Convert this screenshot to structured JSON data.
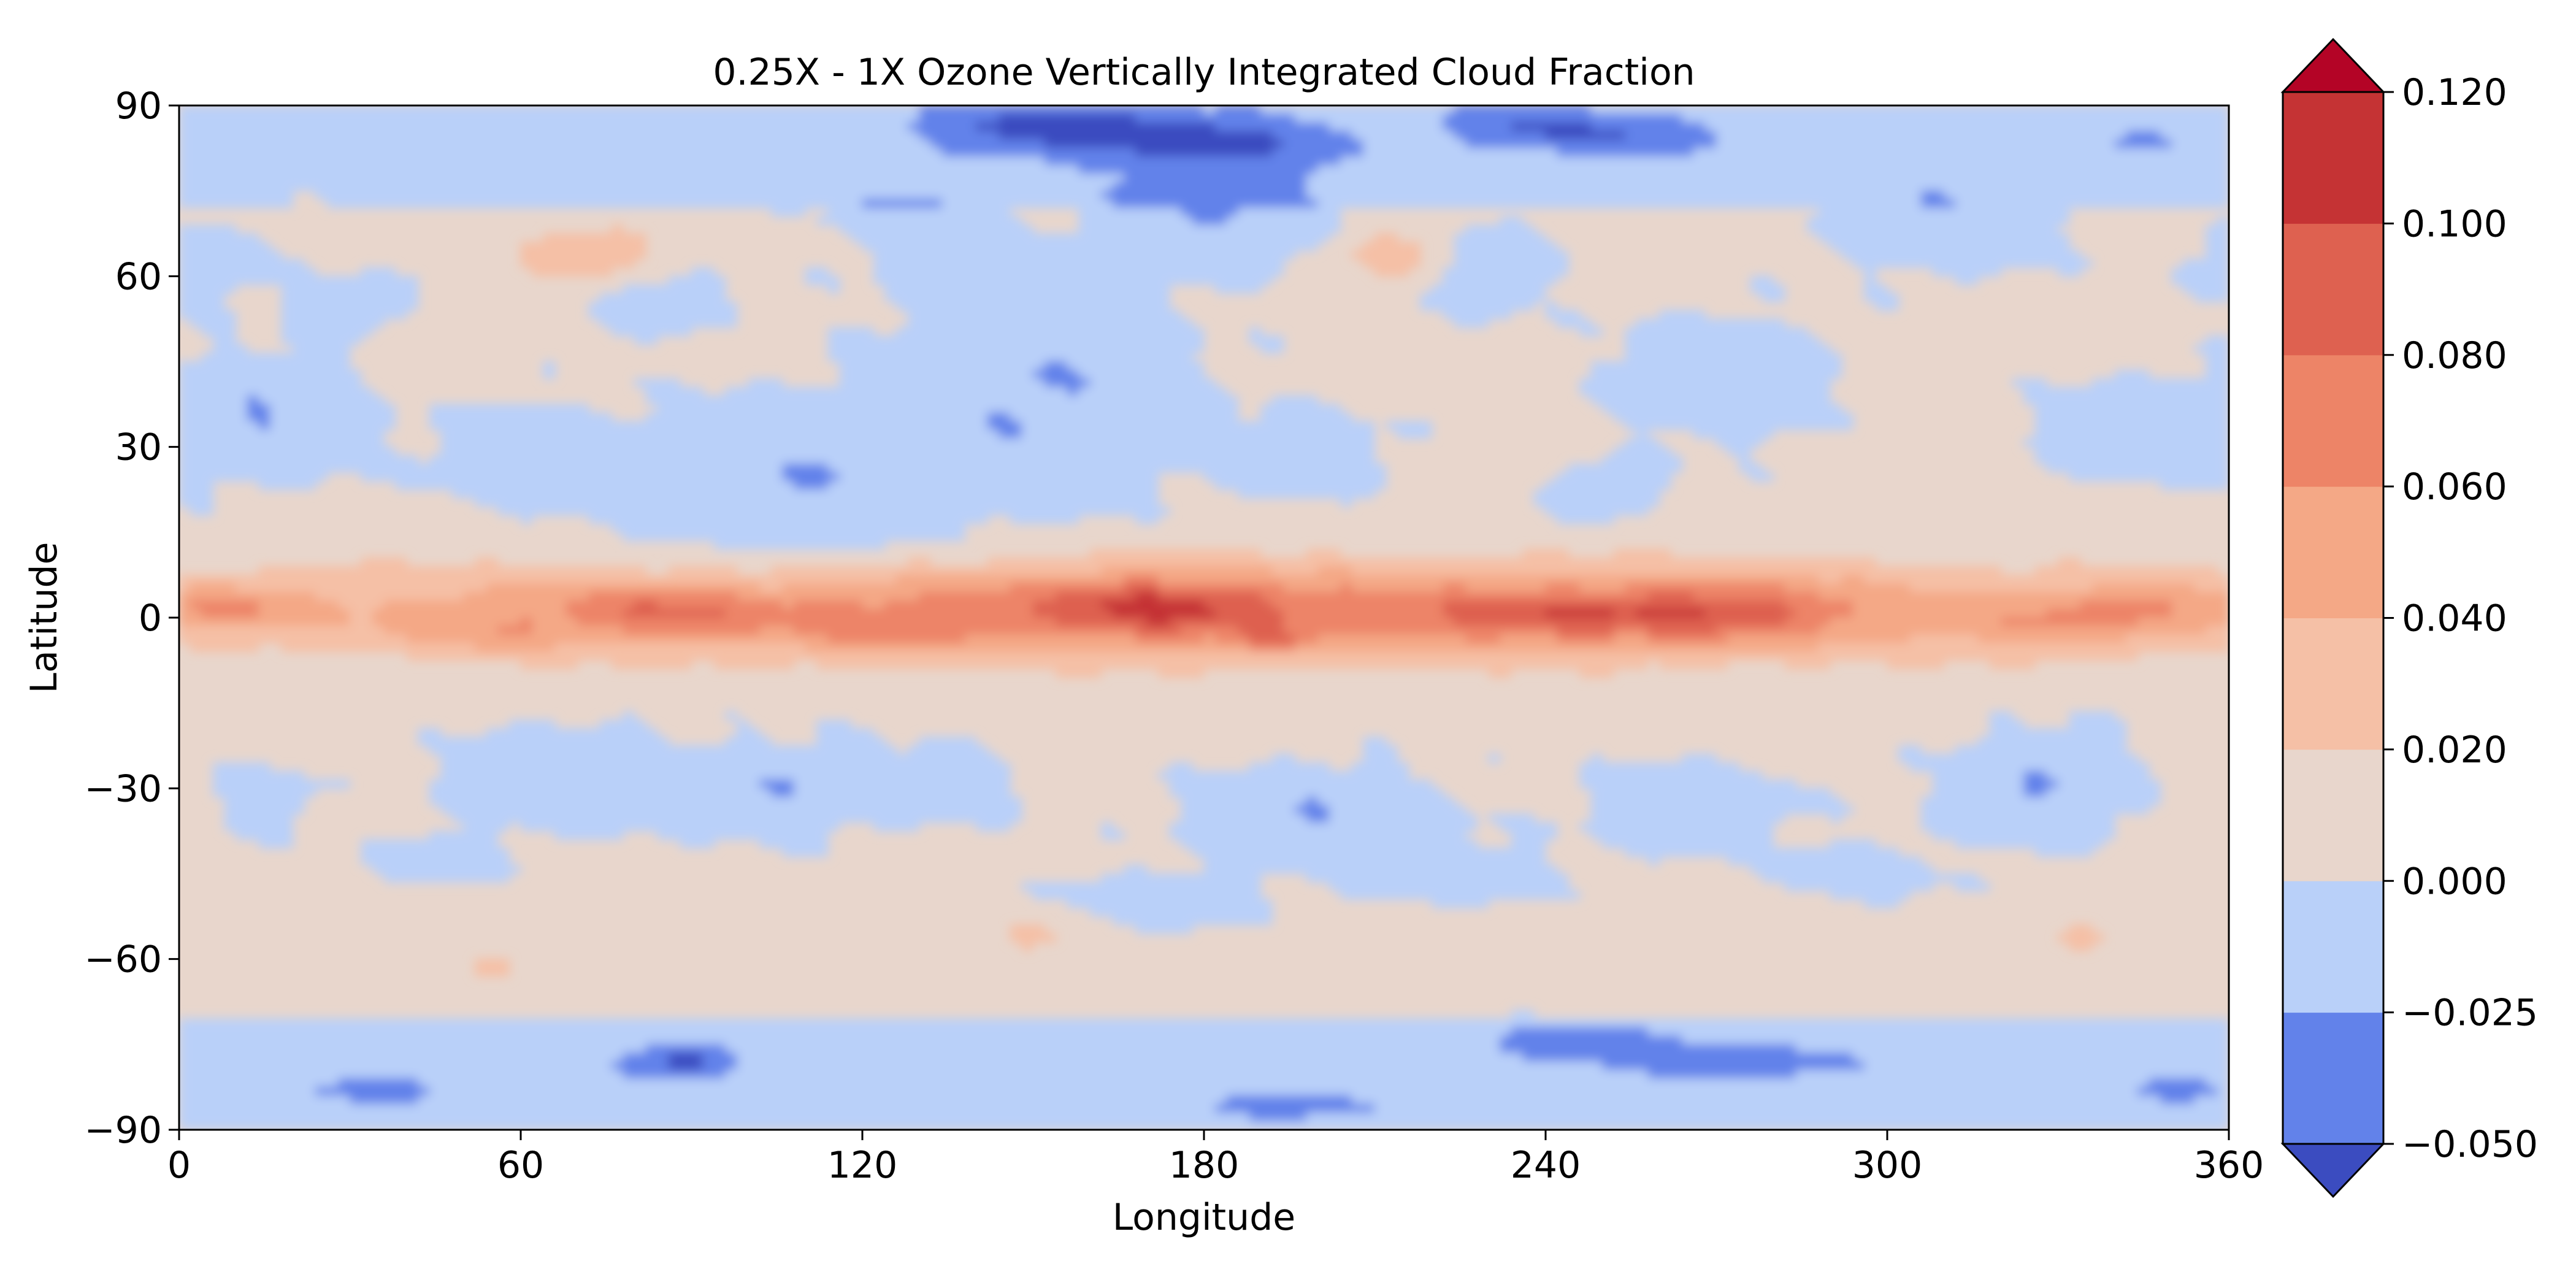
{
  "chart_data": {
    "type": "heatmap",
    "title": "0.25X - 1X Ozone Vertically Integrated Cloud Fraction",
    "xlabel": "Longitude",
    "ylabel": "Latitude",
    "xlim": [
      0,
      360
    ],
    "ylim": [
      -90,
      90
    ],
    "x_ticks": [
      0,
      60,
      120,
      180,
      240,
      300,
      360
    ],
    "x_tick_labels": [
      "0",
      "60",
      "120",
      "180",
      "240",
      "300",
      "360"
    ],
    "y_ticks": [
      90,
      60,
      30,
      0,
      -30,
      -60,
      -90
    ],
    "y_tick_labels": [
      "90",
      "60",
      "30",
      "0",
      "−30",
      "−60",
      "−90"
    ],
    "grid": false,
    "colorbar": {
      "location": "right",
      "extend": "both",
      "levels": [
        -0.05,
        -0.025,
        0.0,
        0.02,
        0.04,
        0.06,
        0.08,
        0.1,
        0.12
      ],
      "tick_labels": [
        "−0.050",
        "−0.025",
        "0.000",
        "0.020",
        "0.040",
        "0.060",
        "0.080",
        "0.100",
        "0.120"
      ],
      "colors": [
        "#6282ea",
        "#b9d0f9",
        "#e8d6cc",
        "#f5c0a6",
        "#f4a886",
        "#ed8467",
        "#de6150",
        "#c53334"
      ],
      "under_color": "#3b4cc0",
      "over_color": "#b40426"
    },
    "field": {
      "description_bands": [
        {
          "lat_range": [
            70,
            90
          ],
          "value": -0.01
        },
        {
          "lat_range": [
            15,
            70
          ],
          "value": 0.005
        },
        {
          "lat_range": [
            -10,
            12
          ],
          "value": 0.06
        },
        {
          "lat_range": [
            -70,
            -15
          ],
          "value": 0.005
        },
        {
          "lat_range": [
            -90,
            -70
          ],
          "value": -0.01
        }
      ]
    }
  }
}
